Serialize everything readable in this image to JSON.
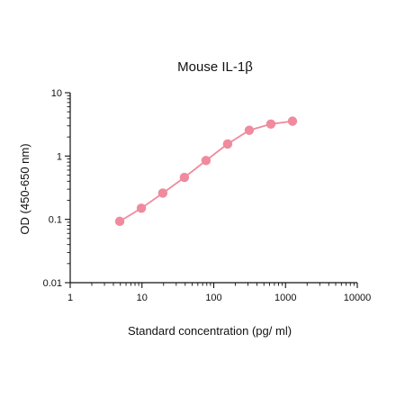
{
  "chart_data": {
    "type": "line",
    "title": "Mouse IL-1β",
    "xlabel": "Standard concentration (pg/ ml)",
    "ylabel": "OD (450-650 nm)",
    "x_scale": "log",
    "y_scale": "log",
    "xlim": [
      1,
      10000
    ],
    "ylim": [
      0.01,
      10
    ],
    "x_ticks": [
      1,
      10,
      100,
      1000,
      10000
    ],
    "x_tick_labels": [
      "1",
      "10",
      "100",
      "1000",
      "10000"
    ],
    "y_ticks": [
      0.01,
      0.1,
      1,
      10
    ],
    "y_tick_labels": [
      "0.01",
      "0.1",
      "1",
      "10"
    ],
    "grid": false,
    "series": [
      {
        "color": "#f08a9d",
        "x": [
          4.9,
          9.8,
          19.5,
          39,
          78,
          156,
          312.5,
          625,
          1250
        ],
        "y": [
          0.093,
          0.15,
          0.26,
          0.46,
          0.85,
          1.55,
          2.55,
          3.2,
          3.55
        ]
      }
    ]
  }
}
